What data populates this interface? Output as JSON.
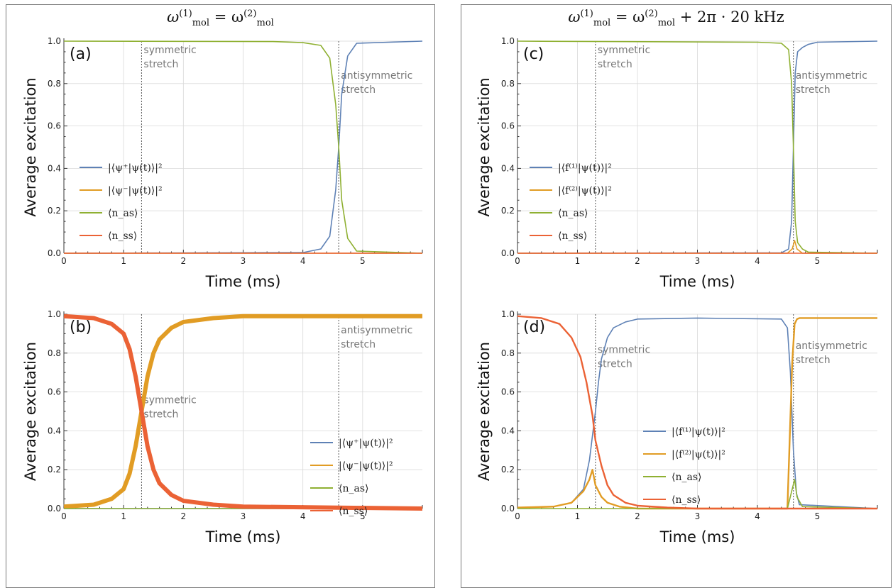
{
  "titles": {
    "left": {
      "prefix": "ω",
      "sup1": "(1)",
      "sub1": "mol",
      "eq": " = ω",
      "sup2": "(2)",
      "sub2": "mol",
      "suffix": ""
    },
    "right": {
      "prefix": "ω",
      "sup1": "(1)",
      "sub1": "mol",
      "eq": " = ω",
      "sup2": "(2)",
      "sub2": "mol",
      "suffix": " + 2π · 20 kHz"
    }
  },
  "colors": {
    "series1": "#5e81b5",
    "series2": "#e19c24",
    "series3": "#8fb032",
    "series4": "#eb6235"
  },
  "chart_data": [
    {
      "id": "a",
      "type": "line",
      "panel_label": "(a)",
      "xlabel": "Time (ms)",
      "ylabel": "Average excitation",
      "xlim": [
        0,
        6
      ],
      "ylim": [
        0,
        1
      ],
      "xticks": [
        "0",
        "1",
        "2",
        "3",
        "4",
        "5"
      ],
      "yticks": [
        "0.0",
        "0.2",
        "0.4",
        "0.6",
        "0.8",
        "1.0"
      ],
      "markers": [
        {
          "x": 1.3,
          "label": [
            "symmetric",
            "stretch"
          ],
          "label_y": 0.96
        },
        {
          "x": 4.6,
          "label": [
            "antisymmetric",
            "stretch"
          ],
          "label_y": 0.84
        }
      ],
      "legend_position": "center-left",
      "series": [
        {
          "name": "|⟨ψ⁺|ψ(t)⟩|²",
          "color_key": "series1",
          "x": [
            0,
            4.0,
            4.3,
            4.45,
            4.55,
            4.6,
            4.65,
            4.75,
            4.9,
            6.0
          ],
          "y": [
            0.0,
            0.003,
            0.02,
            0.08,
            0.3,
            0.5,
            0.75,
            0.93,
            0.99,
            1.0
          ]
        },
        {
          "name": "|⟨ψ⁻|ψ(t)⟩|²",
          "color_key": "series2",
          "x": [
            0,
            6.0
          ],
          "y": [
            0.0,
            0.0
          ]
        },
        {
          "name": "⟨n_as⟩",
          "color_key": "series3",
          "x": [
            0,
            3.5,
            4.0,
            4.3,
            4.45,
            4.55,
            4.6,
            4.65,
            4.75,
            4.9,
            6.0
          ],
          "y": [
            1.0,
            0.998,
            0.993,
            0.98,
            0.92,
            0.7,
            0.5,
            0.25,
            0.07,
            0.01,
            0.0
          ]
        },
        {
          "name": "⟨n_ss⟩",
          "color_key": "series4",
          "x": [
            0,
            6.0
          ],
          "y": [
            0.0,
            0.0
          ]
        }
      ]
    },
    {
      "id": "b",
      "type": "line",
      "panel_label": "(b)",
      "xlabel": "Time (ms)",
      "ylabel": "Average excitation",
      "xlim": [
        0,
        6
      ],
      "ylim": [
        0,
        1
      ],
      "xticks": [
        "0",
        "1",
        "2",
        "3",
        "4",
        "5"
      ],
      "yticks": [
        "0.0",
        "0.2",
        "0.4",
        "0.6",
        "0.8",
        "1.0"
      ],
      "markers": [
        {
          "x": 1.3,
          "label": [
            "symmetric",
            "stretch"
          ],
          "label_y": 0.56
        },
        {
          "x": 4.6,
          "label": [
            "antisymmetric",
            "stretch"
          ],
          "label_y": 0.92
        }
      ],
      "legend_position": "lower-right",
      "series": [
        {
          "name": "|⟨ψ⁺|ψ(t)⟩|²",
          "color_key": "series1",
          "x": [
            0,
            6.0
          ],
          "y": [
            0.0,
            0.0
          ]
        },
        {
          "name": "|⟨ψ⁻|ψ(t)⟩|²",
          "color_key": "series2",
          "x": [
            0,
            0.5,
            0.8,
            1.0,
            1.1,
            1.2,
            1.3,
            1.4,
            1.5,
            1.6,
            1.8,
            2.0,
            2.5,
            3.0,
            6.0
          ],
          "y": [
            0.01,
            0.02,
            0.05,
            0.1,
            0.18,
            0.32,
            0.5,
            0.68,
            0.8,
            0.87,
            0.93,
            0.96,
            0.98,
            0.99,
            0.99
          ]
        },
        {
          "name": "⟨n_as⟩",
          "color_key": "series3",
          "x": [
            0,
            6.0
          ],
          "y": [
            0.0,
            0.0
          ]
        },
        {
          "name": "⟨n_ss⟩",
          "color_key": "series4",
          "x": [
            0,
            0.5,
            0.8,
            1.0,
            1.1,
            1.2,
            1.3,
            1.4,
            1.5,
            1.6,
            1.8,
            2.0,
            2.5,
            3.0,
            6.0
          ],
          "y": [
            0.99,
            0.98,
            0.95,
            0.9,
            0.82,
            0.68,
            0.5,
            0.32,
            0.2,
            0.13,
            0.07,
            0.04,
            0.02,
            0.01,
            0.0
          ]
        }
      ]
    },
    {
      "id": "c",
      "type": "line",
      "panel_label": "(c)",
      "xlabel": "Time (ms)",
      "ylabel": "Average excitation",
      "xlim": [
        0,
        6
      ],
      "ylim": [
        0,
        1
      ],
      "xticks": [
        "0",
        "1",
        "2",
        "3",
        "4",
        "5"
      ],
      "yticks": [
        "0.0",
        "0.2",
        "0.4",
        "0.6",
        "0.8",
        "1.0"
      ],
      "markers": [
        {
          "x": 1.3,
          "label": [
            "symmetric",
            "stretch"
          ],
          "label_y": 0.96
        },
        {
          "x": 4.6,
          "label": [
            "antisymmetric",
            "stretch"
          ],
          "label_y": 0.84
        }
      ],
      "legend_position": "center-left",
      "series": [
        {
          "name": "|⟨f⁽¹⁾|ψ(t)⟩|²",
          "color_key": "series1",
          "x": [
            0,
            4.4,
            4.52,
            4.57,
            4.6,
            4.63,
            4.67,
            4.75,
            4.85,
            5.0,
            6.0
          ],
          "y": [
            0.0,
            0.002,
            0.02,
            0.15,
            0.5,
            0.85,
            0.95,
            0.97,
            0.985,
            0.995,
            1.0
          ]
        },
        {
          "name": "|⟨f⁽²⁾|ψ(t)⟩|²",
          "color_key": "series2",
          "x": [
            0,
            4.5,
            4.58,
            4.62,
            4.66,
            4.75,
            6.0
          ],
          "y": [
            0.0,
            0.0,
            0.02,
            0.06,
            0.02,
            0.0,
            0.0
          ]
        },
        {
          "name": "⟨n_as⟩",
          "color_key": "series3",
          "x": [
            0,
            4.0,
            4.4,
            4.52,
            4.57,
            4.6,
            4.63,
            4.67,
            4.75,
            4.85,
            6.0
          ],
          "y": [
            1.0,
            0.995,
            0.99,
            0.96,
            0.8,
            0.5,
            0.15,
            0.05,
            0.02,
            0.005,
            0.0
          ]
        },
        {
          "name": "⟨n_ss⟩",
          "color_key": "series4",
          "x": [
            0,
            6.0
          ],
          "y": [
            0.0,
            0.0
          ]
        }
      ]
    },
    {
      "id": "d",
      "type": "line",
      "panel_label": "(d)",
      "xlabel": "Time (ms)",
      "ylabel": "Average excitation",
      "xlim": [
        0,
        6
      ],
      "ylim": [
        0,
        1
      ],
      "xticks": [
        "0",
        "1",
        "2",
        "3",
        "4",
        "5"
      ],
      "yticks": [
        "0.0",
        "0.2",
        "0.4",
        "0.6",
        "0.8",
        "1.0"
      ],
      "markers": [
        {
          "x": 1.3,
          "label": [
            "symmetric",
            "stretch"
          ],
          "label_y": 0.82
        },
        {
          "x": 4.6,
          "label": [
            "antisymmetric",
            "stretch"
          ],
          "label_y": 0.84
        }
      ],
      "legend_position": "lower-center",
      "series": [
        {
          "name": "|⟨f⁽¹⁾|ψ(t)⟩|²",
          "color_key": "series1",
          "x": [
            0,
            0.6,
            0.9,
            1.1,
            1.2,
            1.3,
            1.35,
            1.4,
            1.5,
            1.6,
            1.8,
            2.0,
            3.0,
            4.4,
            4.5,
            4.55,
            4.6,
            4.65,
            4.7,
            6.0
          ],
          "y": [
            0.005,
            0.01,
            0.03,
            0.1,
            0.25,
            0.5,
            0.65,
            0.77,
            0.88,
            0.93,
            0.96,
            0.975,
            0.98,
            0.975,
            0.93,
            0.7,
            0.3,
            0.08,
            0.02,
            0.0
          ]
        },
        {
          "name": "|⟨f⁽²⁾|ψ(t)⟩|²",
          "color_key": "series2",
          "x": [
            0,
            0.6,
            0.9,
            1.1,
            1.2,
            1.25,
            1.3,
            1.4,
            1.5,
            1.7,
            2.0,
            4.5,
            4.58,
            4.62,
            4.66,
            4.7,
            6.0
          ],
          "y": [
            0.005,
            0.01,
            0.03,
            0.09,
            0.15,
            0.2,
            0.12,
            0.06,
            0.03,
            0.01,
            0.0,
            0.0,
            0.75,
            0.95,
            0.975,
            0.98,
            0.98
          ]
        },
        {
          "name": "⟨n_as⟩",
          "color_key": "series3",
          "x": [
            0,
            4.5,
            4.58,
            4.62,
            4.66,
            4.75,
            6.0
          ],
          "y": [
            0.0,
            0.0,
            0.1,
            0.15,
            0.06,
            0.01,
            0.0
          ]
        },
        {
          "name": "⟨n_ss⟩",
          "color_key": "series4",
          "x": [
            0,
            0.4,
            0.7,
            0.9,
            1.05,
            1.15,
            1.25,
            1.3,
            1.4,
            1.5,
            1.6,
            1.8,
            2.0,
            2.5,
            3.0,
            6.0
          ],
          "y": [
            0.99,
            0.98,
            0.95,
            0.88,
            0.78,
            0.65,
            0.48,
            0.35,
            0.22,
            0.12,
            0.07,
            0.03,
            0.015,
            0.005,
            0.0,
            0.0
          ]
        }
      ]
    }
  ]
}
